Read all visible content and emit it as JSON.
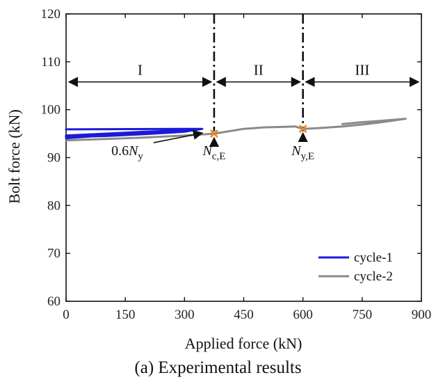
{
  "caption": "(a) Experimental results",
  "chart_data": {
    "type": "line",
    "xlabel": "Applied force (kN)",
    "ylabel": "Bolt force (kN)",
    "xlim": [
      0,
      900
    ],
    "ylim": [
      60,
      120
    ],
    "xticks": [
      0,
      150,
      300,
      450,
      600,
      750,
      900
    ],
    "yticks": [
      60,
      70,
      80,
      90,
      100,
      110,
      120
    ],
    "grid": false,
    "legend_position": "bottom-right",
    "series": [
      {
        "name": "cycle-1",
        "color": "#1a1adb",
        "x": [
          0,
          300,
          340,
          300,
          200,
          100,
          0,
          0,
          100,
          200,
          300,
          345,
          250,
          150,
          60,
          10,
          0
        ],
        "y": [
          95.9,
          96.0,
          96.0,
          95.7,
          95.4,
          95.0,
          94.6,
          94.3,
          94.5,
          94.9,
          95.4,
          96.0,
          95.5,
          95.1,
          94.4,
          94.1,
          94.0
        ]
      },
      {
        "name": "cycle-2",
        "color": "#8a8a8a",
        "x": [
          0,
          100,
          200,
          300,
          375,
          450,
          500,
          550,
          580,
          600,
          650,
          700,
          750,
          800,
          860,
          800,
          750,
          700
        ],
        "y": [
          93.6,
          93.9,
          94.2,
          94.6,
          95.0,
          96.0,
          96.3,
          96.4,
          96.5,
          96.0,
          96.2,
          96.5,
          96.9,
          97.4,
          98.1,
          97.7,
          97.4,
          97.0
        ]
      }
    ],
    "vertical_lines": [
      {
        "x": 375,
        "style": "dash-dot"
      },
      {
        "x": 600,
        "style": "dash-dot"
      }
    ],
    "regions": [
      {
        "label": "I",
        "x_start": 0,
        "x_end": 375,
        "y": 105.8
      },
      {
        "label": "II",
        "x_start": 375,
        "x_end": 600,
        "y": 105.8
      },
      {
        "label": "III",
        "x_start": 600,
        "x_end": 900,
        "y": 105.8
      }
    ],
    "markers": [
      {
        "x": 375,
        "y": 95.0,
        "color": "#e88a1a",
        "shape": "x"
      },
      {
        "x": 600,
        "y": 96.0,
        "color": "#e88a1a",
        "shape": "x"
      }
    ],
    "annotations": [
      {
        "id": "a06ny",
        "main": "0.6N",
        "sub": "y",
        "target_x": 345,
        "target_y": 96.0,
        "label_x": 155,
        "label_y": 90.5
      },
      {
        "id": "ncE",
        "main": "N",
        "sub": "c,E",
        "target_x": 375,
        "target_y": 95.0,
        "label_x": 375,
        "label_y": 90.5
      },
      {
        "id": "nyE",
        "main": "N",
        "sub": "y,E",
        "target_x": 600,
        "target_y": 96.0,
        "label_x": 600,
        "label_y": 90.5
      }
    ]
  }
}
